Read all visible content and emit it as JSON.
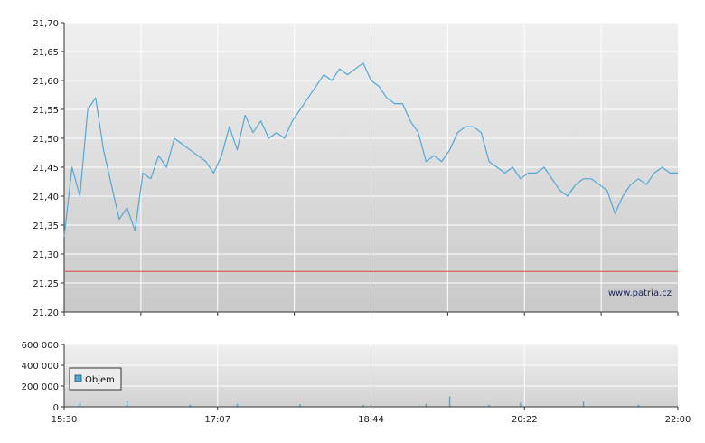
{
  "watermark": "www.patria.cz",
  "legend_label": "Objem",
  "colors": {
    "price_line": "#4fa8d8",
    "reference_line": "#d84a3a",
    "volume_bar": "#4fa8d8",
    "grid": "#ffffff",
    "plot_top": "#f0f0f0",
    "plot_bottom": "#c8c8c8"
  },
  "chart_data": [
    {
      "type": "line",
      "name": "price",
      "y_ticks": [
        "21,20",
        "21,25",
        "21,30",
        "21,35",
        "21,40",
        "21,45",
        "21,50",
        "21,55",
        "21,60",
        "21,65",
        "21,70"
      ],
      "ylim": [
        21.2,
        21.7
      ],
      "xlim": [
        "15:30",
        "22:00"
      ],
      "reference_line": 21.27,
      "x": [
        "15:30",
        "15:35",
        "15:40",
        "15:45",
        "15:50",
        "15:55",
        "16:00",
        "16:05",
        "16:10",
        "16:15",
        "16:20",
        "16:25",
        "16:30",
        "16:35",
        "16:40",
        "16:45",
        "16:50",
        "16:55",
        "17:00",
        "17:05",
        "17:10",
        "17:15",
        "17:20",
        "17:25",
        "17:30",
        "17:35",
        "17:40",
        "17:45",
        "17:50",
        "17:55",
        "18:00",
        "18:05",
        "18:10",
        "18:15",
        "18:20",
        "18:25",
        "18:30",
        "18:35",
        "18:40",
        "18:45",
        "18:50",
        "18:55",
        "19:00",
        "19:05",
        "19:10",
        "19:15",
        "19:20",
        "19:25",
        "19:30",
        "19:35",
        "19:40",
        "19:45",
        "19:50",
        "19:55",
        "20:00",
        "20:05",
        "20:10",
        "20:15",
        "20:20",
        "20:25",
        "20:30",
        "20:35",
        "20:40",
        "20:45",
        "20:50",
        "20:55",
        "21:00",
        "21:05",
        "21:10",
        "21:15",
        "21:20",
        "21:25",
        "21:30",
        "21:35",
        "21:40",
        "21:45",
        "21:50",
        "21:55",
        "22:00"
      ],
      "values": [
        21.33,
        21.45,
        21.4,
        21.55,
        21.57,
        21.48,
        21.42,
        21.36,
        21.38,
        21.34,
        21.44,
        21.43,
        21.47,
        21.45,
        21.5,
        21.49,
        21.48,
        21.47,
        21.46,
        21.44,
        21.47,
        21.52,
        21.48,
        21.54,
        21.51,
        21.53,
        21.5,
        21.51,
        21.5,
        21.53,
        21.55,
        21.57,
        21.59,
        21.61,
        21.6,
        21.62,
        21.61,
        21.62,
        21.63,
        21.6,
        21.59,
        21.57,
        21.56,
        21.56,
        21.53,
        21.51,
        21.46,
        21.47,
        21.46,
        21.48,
        21.51,
        21.52,
        21.52,
        21.51,
        21.46,
        21.45,
        21.44,
        21.45,
        21.43,
        21.44,
        21.44,
        21.45,
        21.43,
        21.41,
        21.4,
        21.42,
        21.43,
        21.43,
        21.42,
        21.41,
        21.37,
        21.4,
        21.42,
        21.43,
        21.42,
        21.44,
        21.45,
        21.44,
        21.44
      ]
    },
    {
      "type": "bar",
      "name": "Objem",
      "y_ticks": [
        "0",
        "200 000",
        "400 000",
        "600 000"
      ],
      "ylim": [
        0,
        600000
      ],
      "x_ticks": [
        "15:30",
        "17:07",
        "18:44",
        "20:22",
        "22:00"
      ],
      "x": [
        "15:40",
        "16:10",
        "16:50",
        "17:20",
        "18:00",
        "18:40",
        "19:20",
        "19:35",
        "20:00",
        "20:20",
        "21:00",
        "21:35"
      ],
      "values": [
        40000,
        60000,
        20000,
        30000,
        25000,
        20000,
        30000,
        100000,
        20000,
        40000,
        50000,
        20000
      ]
    }
  ]
}
